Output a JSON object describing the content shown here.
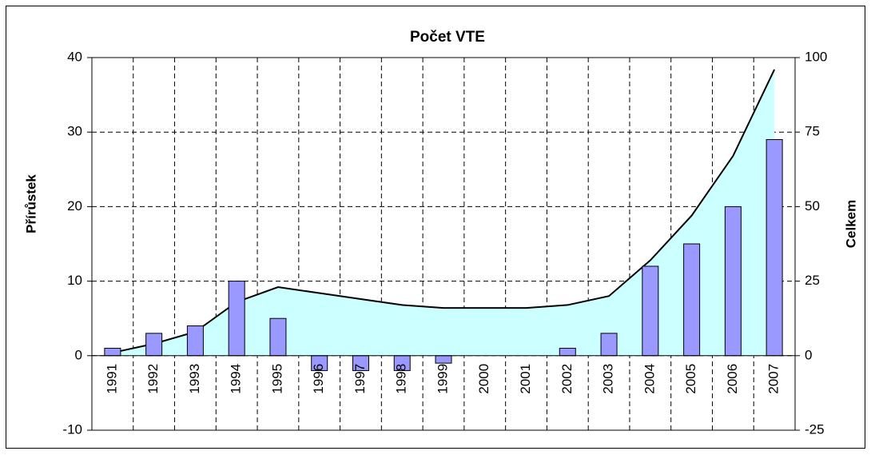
{
  "chart_data": {
    "type": "bar",
    "title": "Počet VTE",
    "y_label": "Přírůstek",
    "y2_label": "Celkem",
    "categories": [
      "1991",
      "1992",
      "1993",
      "1994",
      "1995",
      "1996",
      "1997",
      "1998",
      "1999",
      "2000",
      "2001",
      "2002",
      "2003",
      "2004",
      "2005",
      "2006",
      "2007"
    ],
    "series": [
      {
        "type": "bar",
        "color": "#9999ff",
        "values": [
          1,
          3,
          4,
          10,
          5,
          -2,
          -2,
          -2,
          -1,
          0,
          0,
          1,
          3,
          12,
          15,
          20,
          29
        ]
      },
      {
        "type": "area",
        "axis": "y2",
        "color": "#ccffff",
        "values": [
          1,
          4,
          8,
          18,
          23,
          21,
          19,
          17,
          16,
          16,
          16,
          17,
          20,
          32,
          47,
          67,
          96
        ]
      }
    ],
    "ylim": [
      -10,
      40
    ],
    "yticks": [
      -10,
      0,
      10,
      20,
      30,
      40
    ],
    "y2lim": [
      -25,
      100
    ],
    "y2ticks": [
      -25,
      0,
      25,
      50,
      75,
      100
    ],
    "grid": true
  }
}
